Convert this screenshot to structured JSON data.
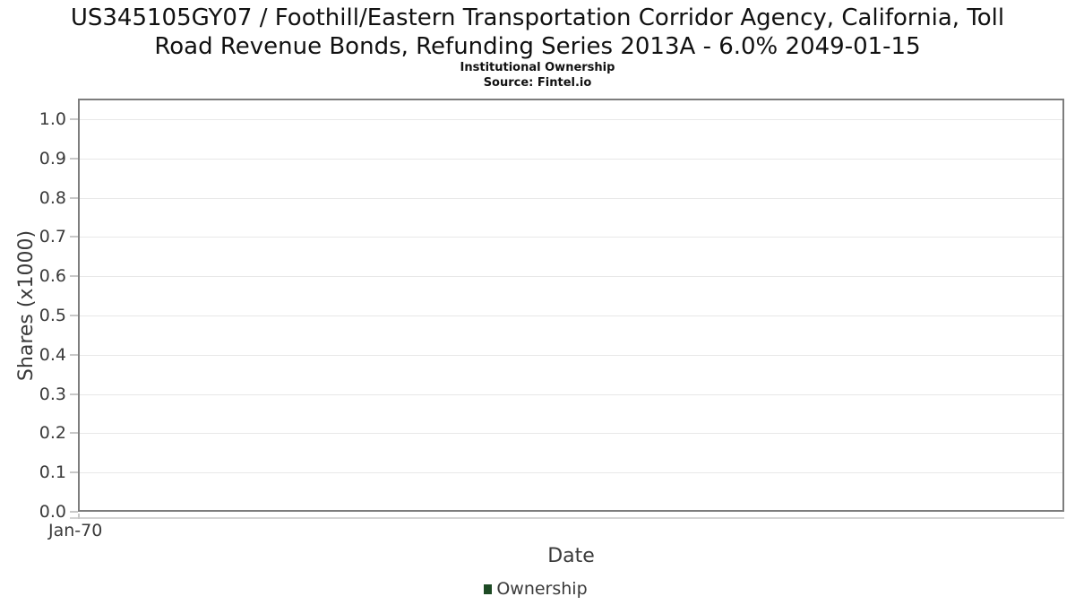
{
  "header": {
    "title_lines": [
      "US345105GY07 / Foothill/Eastern Transportation Corridor Agency, California, Toll",
      "Road Revenue Bonds, Refunding Series 2013A - 6.0% 2049-01-15"
    ],
    "subtitle": "Institutional Ownership",
    "source": "Source: Fintel.io"
  },
  "chart_data": {
    "type": "line",
    "title": "US345105GY07 / Foothill/Eastern Transportation Corridor Agency, California, Toll Road Revenue Bonds, Refunding Series 2013A - 6.0% 2049-01-15",
    "subtitle": "Institutional Ownership",
    "source": "Source: Fintel.io",
    "xlabel": "Date",
    "ylabel": "Shares (x1000)",
    "ylim": [
      0.0,
      1.05
    ],
    "grid": true,
    "legend_position": "bottom",
    "x_ticks": [
      "Jan-70"
    ],
    "y_ticks": [
      {
        "value": 0.0,
        "label": "0.0"
      },
      {
        "value": 0.1,
        "label": "0.1"
      },
      {
        "value": 0.2,
        "label": "0.2"
      },
      {
        "value": 0.3,
        "label": "0.3"
      },
      {
        "value": 0.4,
        "label": "0.4"
      },
      {
        "value": 0.5,
        "label": "0.5"
      },
      {
        "value": 0.6,
        "label": "0.6"
      },
      {
        "value": 0.7,
        "label": "0.7"
      },
      {
        "value": 0.8,
        "label": "0.8"
      },
      {
        "value": 0.9,
        "label": "0.9"
      },
      {
        "value": 1.0,
        "label": "1.0"
      }
    ],
    "series": [
      {
        "name": "Ownership",
        "color": "#1d4a24",
        "x": [],
        "values": []
      }
    ]
  },
  "colors": {
    "plot_border": "#7d7d7d",
    "gridline": "#e8e8e8",
    "tick": "#c8c8c8",
    "axis_text": "#3a3a3a",
    "title_text": "#111111",
    "legend_marker": "#1d4a24"
  }
}
